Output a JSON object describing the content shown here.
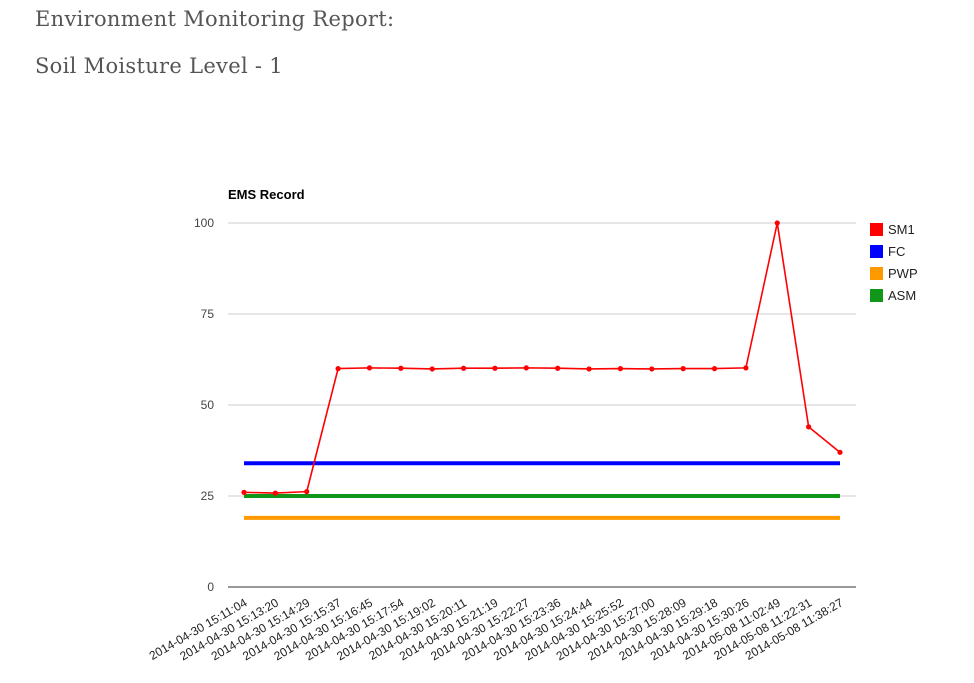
{
  "header": {
    "title": "Environment Monitoring Report:",
    "subtitle": "Soil Moisture Level - 1"
  },
  "chart_data": {
    "type": "line",
    "title": "EMS Record",
    "xlabel": "",
    "ylabel": "",
    "ylim": [
      0,
      100
    ],
    "yticks": [
      0,
      25,
      50,
      75,
      100
    ],
    "grid": true,
    "legend_position": "right",
    "categories": [
      "2014-04-30 15:11:04",
      "2014-04-30 15:13:20",
      "2014-04-30 15:14:29",
      "2014-04-30 15:15:37",
      "2014-04-30 15:16:45",
      "2014-04-30 15:17:54",
      "2014-04-30 15:19:02",
      "2014-04-30 15:20:11",
      "2014-04-30 15:21:19",
      "2014-04-30 15:22:27",
      "2014-04-30 15:23:36",
      "2014-04-30 15:24:44",
      "2014-04-30 15:25:52",
      "2014-04-30 15:27:00",
      "2014-04-30 15:28:09",
      "2014-04-30 15:29:18",
      "2014-04-30 15:30:26",
      "2014-05-08 11:02:49",
      "2014-05-08 11:22:31",
      "2014-05-08 11:38:27"
    ],
    "series": [
      {
        "name": "SM1",
        "color": "#ff0000",
        "markers": true,
        "values": [
          26,
          25.8,
          26.2,
          60,
          60.2,
          60.1,
          59.9,
          60.1,
          60.1,
          60.2,
          60.1,
          59.9,
          60,
          59.9,
          60,
          60,
          60.2,
          100,
          44,
          37
        ]
      },
      {
        "name": "FC",
        "color": "#0000ff",
        "markers": false,
        "values": [
          34,
          34,
          34,
          34,
          34,
          34,
          34,
          34,
          34,
          34,
          34,
          34,
          34,
          34,
          34,
          34,
          34,
          34,
          34,
          34
        ]
      },
      {
        "name": "PWP",
        "color": "#ff9900",
        "markers": false,
        "values": [
          19,
          19,
          19,
          19,
          19,
          19,
          19,
          19,
          19,
          19,
          19,
          19,
          19,
          19,
          19,
          19,
          19,
          19,
          19,
          19
        ]
      },
      {
        "name": "ASM",
        "color": "#109618",
        "markers": false,
        "values": [
          25,
          25,
          25,
          25,
          25,
          25,
          25,
          25,
          25,
          25,
          25,
          25,
          25,
          25,
          25,
          25,
          25,
          25,
          25,
          25
        ]
      }
    ]
  }
}
